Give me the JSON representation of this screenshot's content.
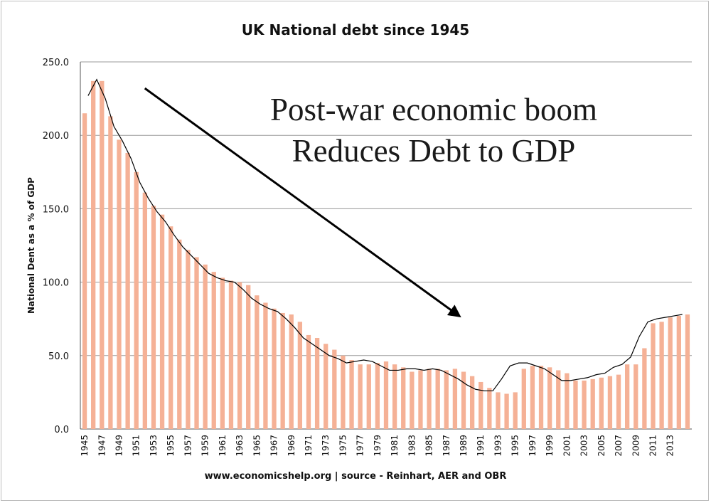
{
  "chart_data": {
    "type": "bar",
    "title": "UK National debt since 1945",
    "ylabel": "National Dent as a % of GDP",
    "xlabel": "",
    "source": "www.economicshelp.org | source - Reinhart, AER and OBR",
    "annotation": [
      "Post-war economic boom",
      "Reduces Debt to GDP"
    ],
    "ylim": [
      0,
      250
    ],
    "yticks": [
      "0.0",
      "50.0",
      "100.0",
      "150.0",
      "200.0",
      "250.0"
    ],
    "grid": true,
    "colors": {
      "bar": "#f5b196",
      "line": "#000000",
      "grid": "#9a9a9a",
      "arrow": "#000000"
    },
    "x_start": 1945,
    "x_tick_labels": [
      "1945",
      "1947",
      "1949",
      "1951",
      "1953",
      "1955",
      "1957",
      "1959",
      "1961",
      "1963",
      "1965",
      "1967",
      "1969",
      "1971",
      "1973",
      "1975",
      "1977",
      "1979",
      "1981",
      "1983",
      "1985",
      "1987",
      "1989",
      "1991",
      "1993",
      "1995",
      "1997",
      "1999",
      "2001",
      "2003",
      "2005",
      "2007",
      "2009",
      "2011",
      "2013"
    ],
    "values": [
      215,
      237,
      237,
      213,
      197,
      188,
      175,
      161,
      152,
      146,
      138,
      129,
      122,
      117,
      112,
      107,
      103,
      101,
      100,
      98,
      91,
      86,
      82,
      79,
      78,
      73,
      64,
      62,
      58,
      54,
      50,
      47,
      44,
      44,
      45,
      46,
      44,
      42,
      39,
      40,
      41,
      41,
      40,
      41,
      39,
      36,
      32,
      28,
      25,
      24,
      25,
      41,
      43,
      43,
      42,
      40,
      38,
      33,
      33,
      34,
      35,
      36,
      37,
      44,
      44,
      55,
      72,
      73,
      76,
      77,
      78
    ],
    "trend_line": [
      227,
      238,
      225,
      206,
      196,
      184,
      168,
      157,
      148,
      141,
      132,
      124,
      118,
      112,
      106,
      103,
      101,
      100,
      95,
      89,
      85,
      82,
      80,
      75,
      69,
      62,
      58,
      54,
      50,
      48,
      45,
      46,
      47,
      46,
      43,
      40,
      40,
      41,
      41,
      40,
      41,
      40,
      37,
      34,
      30,
      27,
      26,
      26,
      34,
      43,
      45,
      45,
      43,
      41,
      37,
      33,
      33,
      34,
      35,
      37,
      38,
      42,
      44,
      49,
      63,
      73,
      75,
      76,
      77,
      78
    ],
    "arrow": {
      "from": [
        1951,
        232
      ],
      "to": [
        1987,
        77
      ]
    }
  }
}
